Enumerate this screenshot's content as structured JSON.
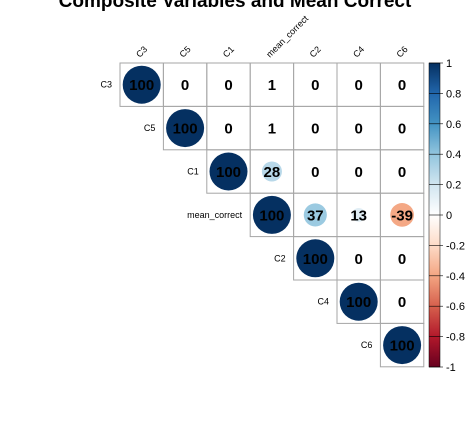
{
  "chart_data": {
    "type": "heatmap",
    "subtype": "correlation-upper-triangle-circles",
    "title": "Composite Variables and Mean Correct",
    "variables": [
      "C3",
      "C5",
      "C1",
      "mean_correct",
      "C2",
      "C4",
      "C6"
    ],
    "values": [
      [
        100,
        0,
        0,
        1,
        0,
        0,
        0
      ],
      [
        null,
        100,
        0,
        1,
        0,
        0,
        0
      ],
      [
        null,
        null,
        100,
        28,
        0,
        0,
        0
      ],
      [
        null,
        null,
        null,
        100,
        37,
        13,
        -39
      ],
      [
        null,
        null,
        null,
        null,
        100,
        0,
        0
      ],
      [
        null,
        null,
        null,
        null,
        null,
        100,
        0
      ],
      [
        null,
        null,
        null,
        null,
        null,
        null,
        100
      ]
    ],
    "value_scale": 100,
    "colorbar": {
      "range": [
        -1,
        1
      ],
      "ticks": [
        "-1",
        "-0.8",
        "-0.6",
        "-0.4",
        "-0.2",
        "0",
        "0.2",
        "0.4",
        "0.6",
        "0.8",
        "1"
      ],
      "colors": [
        "#67001F",
        "#B2182B",
        "#D6604D",
        "#F4A582",
        "#FDDBC7",
        "#FFFFFF",
        "#D1E5F0",
        "#92C5DE",
        "#4393C3",
        "#2166AC",
        "#053061"
      ],
      "placement": "right"
    },
    "grid": true
  }
}
